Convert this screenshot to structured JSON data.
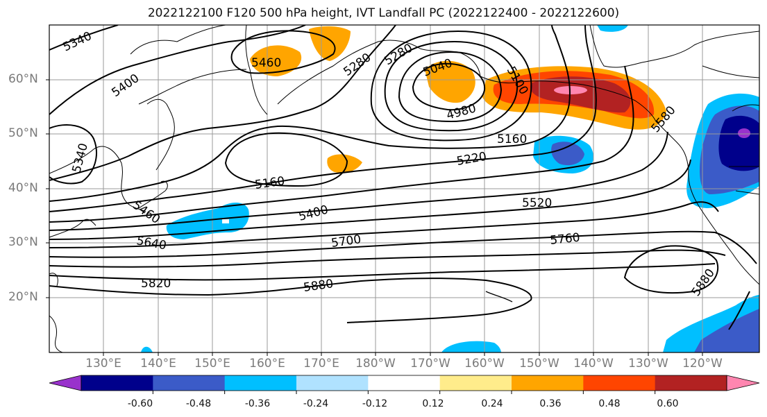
{
  "title": "2022122100 F120 500 hPa height, IVT Landfall PC (2022122400 - 2022122600)",
  "lat_labels": [
    "60°N",
    "50°N",
    "40°N",
    "30°N",
    "20°N"
  ],
  "lon_labels": [
    "130°E",
    "140°E",
    "150°E",
    "160°E",
    "170°E",
    "180°W",
    "170°W",
    "160°W",
    "150°W",
    "140°W",
    "130°W",
    "120°W"
  ],
  "contour_labels": [
    "5340",
    "5400",
    "5460",
    "5340",
    "5280",
    "5040",
    "4980",
    "5100",
    "5160",
    "5220",
    "5160",
    "5460",
    "5400",
    "5520",
    "5640",
    "5700",
    "5760",
    "5820",
    "5880",
    "5880",
    "5580"
  ],
  "colorbar": {
    "tick_labels": [
      "-0.60",
      "-0.48",
      "-0.36",
      "-0.24",
      "-0.12",
      "0.12",
      "0.24",
      "0.36",
      "0.48",
      "0.60"
    ],
    "colors": [
      "#9932cc",
      "#00008b",
      "#3b5bc8",
      "#00bfff",
      "#b0e2ff",
      "#ffffff",
      "#ffec8b",
      "#ffa500",
      "#ff4500",
      "#b22222",
      "#ff86b0"
    ]
  }
}
